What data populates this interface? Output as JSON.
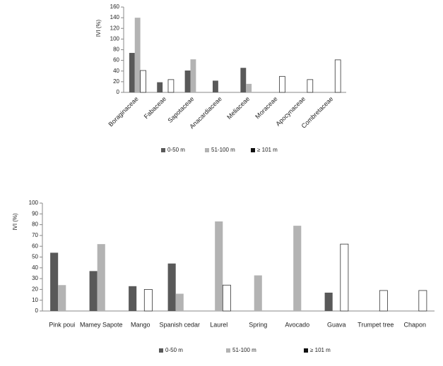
{
  "chart_data": [
    {
      "type": "bar",
      "ylabel": "IVI (%)",
      "categories": [
        "Boraginaceae",
        "Fabaceae",
        "Sapotaceae",
        "Anacardiaceae",
        "Meliaceae",
        "Moraceae",
        "Apocynaceae",
        "Combretaceae"
      ],
      "series": [
        {
          "name": "0-50 m",
          "color": "#595959",
          "values": [
            74,
            19,
            41,
            22,
            46,
            null,
            null,
            null
          ]
        },
        {
          "name": "51-100 m",
          "color": "#b3b3b3",
          "values": [
            140,
            null,
            62,
            null,
            16,
            null,
            null,
            null
          ]
        },
        {
          "name": "≥ 101 m",
          "color": "#ffffff",
          "values": [
            41,
            24,
            null,
            null,
            null,
            30,
            24,
            61
          ]
        }
      ],
      "ylim": [
        0,
        160
      ],
      "yticks": [
        0,
        20,
        40,
        60,
        80,
        100,
        120,
        140,
        160
      ]
    },
    {
      "type": "bar",
      "ylabel": "IVI (%)",
      "categories": [
        "Pink poui",
        "Mamey Sapote",
        "Mango",
        "Spanish cedar",
        "Laurel",
        "Spring",
        "Avocado",
        "Guava",
        "Trumpet tree",
        "Chapon"
      ],
      "series": [
        {
          "name": "0-50 m",
          "color": "#595959",
          "values": [
            54,
            37,
            23,
            44,
            null,
            null,
            null,
            17,
            null,
            null
          ]
        },
        {
          "name": "51-100 m",
          "color": "#b3b3b3",
          "values": [
            24,
            62,
            null,
            16,
            83,
            33,
            79,
            null,
            null,
            null
          ]
        },
        {
          "name": "≥ 101 m",
          "color": "#ffffff",
          "values": [
            null,
            null,
            20,
            null,
            24,
            null,
            null,
            62,
            19,
            19
          ]
        }
      ],
      "ylim": [
        0,
        100
      ],
      "yticks": [
        0,
        10,
        20,
        30,
        40,
        50,
        60,
        70,
        80,
        90,
        100
      ]
    }
  ]
}
